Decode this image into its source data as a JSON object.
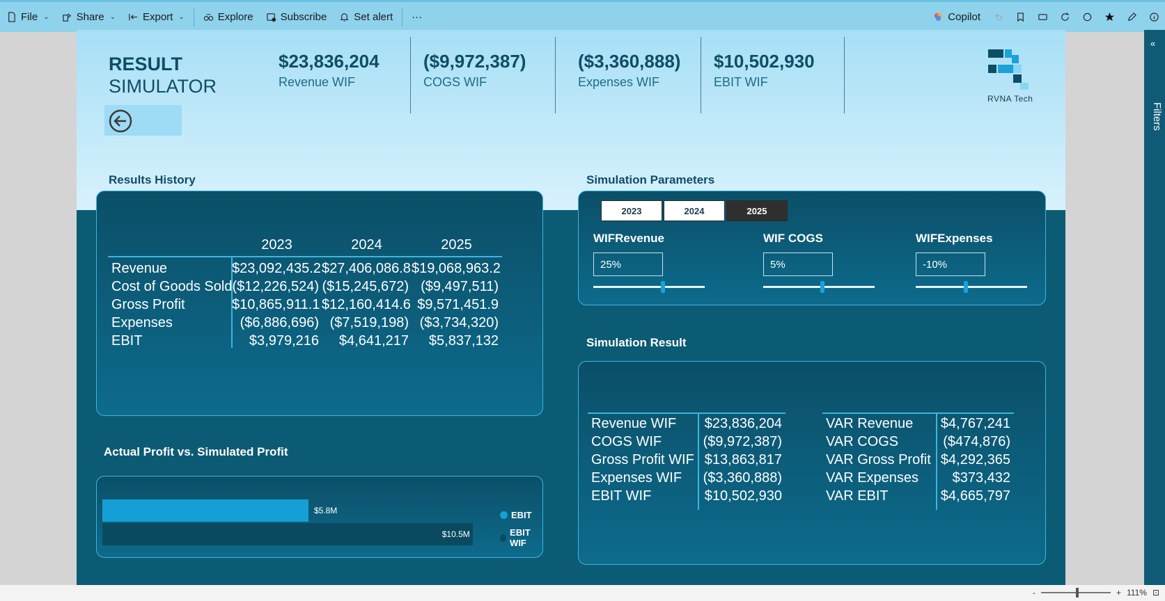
{
  "toolbar": {
    "file": "File",
    "share": "Share",
    "export": "Export",
    "explore": "Explore",
    "subscribe": "Subscribe",
    "set_alert": "Set alert",
    "more": "···",
    "copilot": "Copilot"
  },
  "filters_label": "Filters",
  "status": {
    "zoom": "111%"
  },
  "header": {
    "title_line1": "RESULT",
    "title_line2": "SIMULATOR",
    "logo_text": "RVNA Tech"
  },
  "kpis": [
    {
      "value": "$23,836,204",
      "label": "Revenue WIF"
    },
    {
      "value": "($9,972,387)",
      "label": "COGS WIF"
    },
    {
      "value": "($3,360,888)",
      "label": "Expenses WIF"
    },
    {
      "value": "$10,502,930",
      "label": "EBIT WIF"
    }
  ],
  "results_history": {
    "title": "Results History",
    "years": [
      "2023",
      "2024",
      "2025"
    ],
    "rows": [
      {
        "label": "Revenue",
        "values": [
          "$23,092,435.2",
          "$27,406,086.8",
          "$19,068,963.2"
        ]
      },
      {
        "label": "Cost of Goods Sold",
        "values": [
          "($12,226,524)",
          "($15,245,672)",
          "($9,497,511)"
        ]
      },
      {
        "label": "Gross Profit",
        "values": [
          "$10,865,911.1",
          "$12,160,414.6",
          "$9,571,451.9"
        ]
      },
      {
        "label": "Expenses",
        "values": [
          "($6,886,696)",
          "($7,519,198)",
          "($3,734,320)"
        ]
      },
      {
        "label": "EBIT",
        "values": [
          "$3,979,216",
          "$4,641,217",
          "$5,837,132"
        ]
      }
    ]
  },
  "simulation_parameters": {
    "title": "Simulation Parameters",
    "years": [
      "2023",
      "2024",
      "2025"
    ],
    "selected_year": "2025",
    "params": [
      {
        "label": "WIFRevenue",
        "value": "25%",
        "level": 0.63
      },
      {
        "label": "WIF COGS",
        "value": "5%",
        "level": 0.53
      },
      {
        "label": "WIFExpenses",
        "value": "-10%",
        "level": 0.45
      }
    ]
  },
  "simulation_result": {
    "title": "Simulation Result",
    "wif": [
      {
        "label": "Revenue WIF",
        "value": "$23,836,204"
      },
      {
        "label": "COGS WIF",
        "value": "($9,972,387)"
      },
      {
        "label": "Gross Profit WIF",
        "value": "$13,863,817"
      },
      {
        "label": "Expenses WIF",
        "value": "($3,360,888)"
      },
      {
        "label": "EBIT WIF",
        "value": "$10,502,930"
      }
    ],
    "var": [
      {
        "label": "VAR Revenue",
        "value": "$4,767,241"
      },
      {
        "label": "VAR COGS",
        "value": "($474,876)"
      },
      {
        "label": "VAR Gross Profit",
        "value": "$4,292,365"
      },
      {
        "label": "VAR Expenses",
        "value": "$373,432"
      },
      {
        "label": "VAR EBIT",
        "value": "$4,665,797"
      }
    ]
  },
  "chart_section": {
    "title": "Actual Profit vs. Simulated Profit"
  },
  "chart_data": {
    "type": "bar",
    "orientation": "horizontal",
    "series": [
      {
        "name": "EBIT",
        "value": 5.8,
        "label": "$5.8M",
        "color": "#14a0d4"
      },
      {
        "name": "EBIT WIF",
        "value": 10.5,
        "label": "$10.5M",
        "color": "#0a4a61"
      }
    ],
    "xlim": [
      0,
      10.7
    ],
    "legend": "right"
  }
}
